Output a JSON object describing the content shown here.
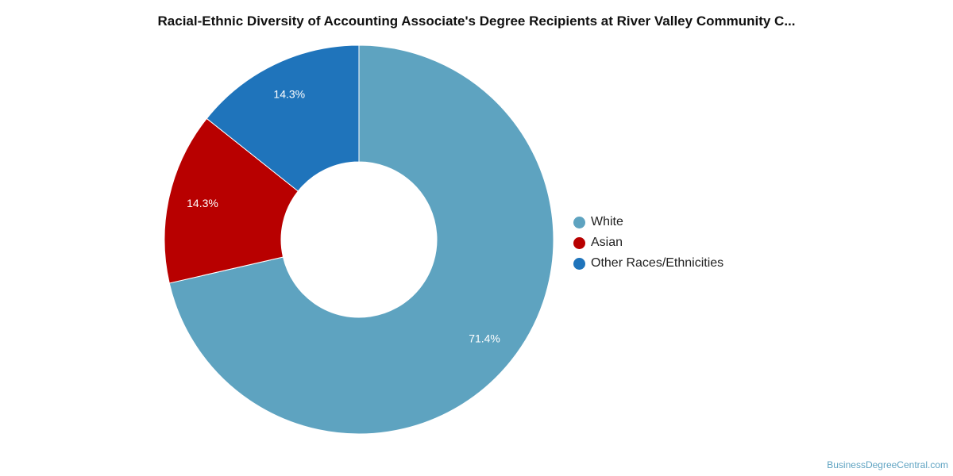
{
  "chart_data": {
    "type": "pie",
    "title": "Racial-Ethnic Diversity of Accounting Associate's Degree Recipients at River Valley Community C...",
    "donut": true,
    "slices": [
      {
        "name": "White",
        "value": 71.4,
        "label": "71.4%",
        "color": "#5ea3c0"
      },
      {
        "name": "Asian",
        "value": 14.3,
        "label": "14.3%",
        "color": "#b80000"
      },
      {
        "name": "Other Races/Ethnicities",
        "value": 14.3,
        "label": "14.3%",
        "color": "#1f74bb"
      }
    ],
    "legend_position": "right"
  },
  "credit": "BusinessDegreeCentral.com"
}
